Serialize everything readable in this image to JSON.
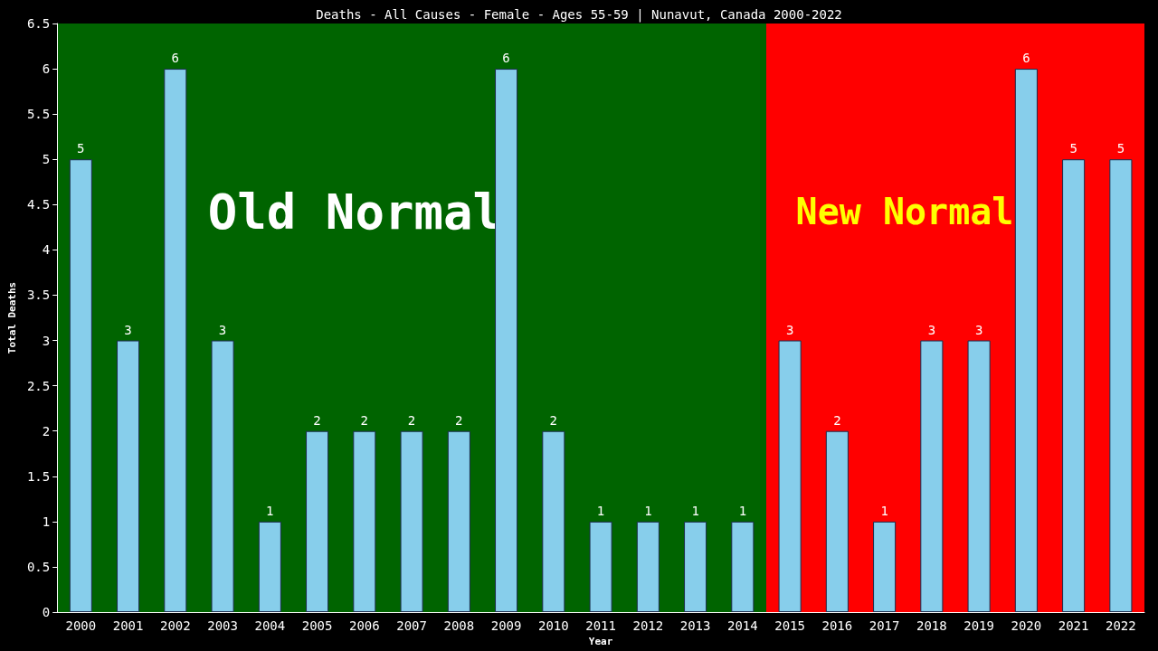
{
  "chart_data": {
    "type": "bar",
    "title": "Deaths - All Causes - Female - Ages 55-59 | Nunavut, Canada 2000-2022",
    "xlabel": "Year",
    "ylabel": "Total Deaths",
    "categories": [
      "2000",
      "2001",
      "2002",
      "2003",
      "2004",
      "2005",
      "2006",
      "2007",
      "2008",
      "2009",
      "2010",
      "2011",
      "2012",
      "2013",
      "2014",
      "2015",
      "2016",
      "2017",
      "2018",
      "2019",
      "2020",
      "2021",
      "2022"
    ],
    "values": [
      5,
      3,
      6,
      3,
      1,
      2,
      2,
      2,
      2,
      6,
      2,
      1,
      1,
      1,
      1,
      3,
      2,
      1,
      3,
      3,
      6,
      5,
      5
    ],
    "color": "#87ceeb",
    "data_labels": true,
    "grid": false,
    "ylim": [
      0,
      6.5
    ],
    "yticks": [
      0,
      0.5,
      1,
      1.5,
      2,
      2.5,
      3,
      3.5,
      4,
      4.5,
      5,
      5.5,
      6,
      6.5
    ],
    "bands": [
      {
        "axis": "x",
        "from": "2000",
        "to": "2014",
        "label": "Old Normal",
        "color": "#006400"
      },
      {
        "axis": "x",
        "from": "2015",
        "to": "2022",
        "label": "New Normal",
        "color": "#ff0000"
      }
    ]
  }
}
